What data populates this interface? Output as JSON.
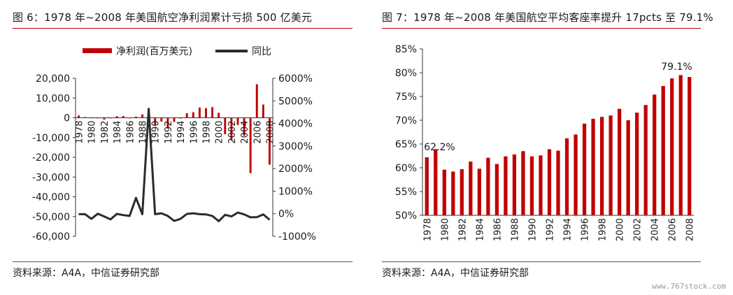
{
  "left": {
    "title": "图 6：1978 年~2008 年美国航空净利润累计亏损 500 亿美元",
    "source": "资料来源：A4A，中信证券研究部"
  },
  "right": {
    "title": "图 7：1978 年~2008 年美国航空平均客座率提升 17pcts 至 79.1%",
    "source": "资料来源：A4A，中信证券研究部"
  },
  "watermark": "www.767stock.com",
  "chart_data": [
    {
      "type": "bar+line",
      "title": "",
      "legend_placement": "top",
      "grid": false,
      "colors": {
        "bar": "#c00000",
        "line": "#2b2b2b"
      },
      "categories": [
        "1978",
        "1979",
        "1980",
        "1981",
        "1982",
        "1983",
        "1984",
        "1985",
        "1986",
        "1987",
        "1988",
        "1989",
        "1990",
        "1991",
        "1992",
        "1993",
        "1994",
        "1995",
        "1996",
        "1997",
        "1998",
        "1999",
        "2000",
        "2001",
        "2002",
        "2003",
        "2004",
        "2005",
        "2006",
        "2007",
        "2008"
      ],
      "x_tick_labels": [
        "1978",
        "1980",
        "1982",
        "1984",
        "1986",
        "1988",
        "1990",
        "1992",
        "1994",
        "1996",
        "1998",
        "2000",
        "2002",
        "2004",
        "2006",
        "2008"
      ],
      "series": [
        {
          "name": "净利润(百万美元)",
          "axis": "left",
          "kind": "bar",
          "values": [
            1200,
            350,
            -200,
            -300,
            -900,
            -200,
            800,
            900,
            -200,
            600,
            1700,
            100,
            -3900,
            -1900,
            -4800,
            -2100,
            -350,
            2300,
            2800,
            5200,
            4900,
            5400,
            2500,
            -8300,
            -11300,
            -3600,
            -9100,
            -28000,
            17000,
            6700,
            -23700
          ]
        },
        {
          "name": "同比",
          "axis": "right",
          "kind": "line",
          "values": [
            -20,
            -20,
            -230,
            0,
            -120,
            -250,
            -10,
            -60,
            -100,
            700,
            -20,
            4650,
            -20,
            20,
            -100,
            -320,
            -230,
            -10,
            20,
            -20,
            -30,
            -100,
            -330,
            -50,
            -120,
            50,
            -30,
            -160,
            -150,
            -30,
            -270
          ]
        }
      ],
      "yleft": {
        "lim": [
          -60000,
          20000
        ],
        "ticks": [
          "20,000",
          "10,000",
          "0",
          "-10,000",
          "-20,000",
          "-30,000",
          "-40,000",
          "-50,000",
          "-60,000"
        ]
      },
      "yright": {
        "lim": [
          -1000,
          6000
        ],
        "ticks": [
          "6000%",
          "5000%",
          "4000%",
          "3000%",
          "2000%",
          "1000%",
          "0%",
          "-1000%"
        ]
      }
    },
    {
      "type": "bar",
      "title": "",
      "grid": false,
      "colors": {
        "bar": "#c00000"
      },
      "categories": [
        "1978",
        "1979",
        "1980",
        "1981",
        "1982",
        "1983",
        "1984",
        "1985",
        "1986",
        "1987",
        "1988",
        "1989",
        "1990",
        "1991",
        "1992",
        "1993",
        "1994",
        "1995",
        "1996",
        "1997",
        "1998",
        "1999",
        "2000",
        "2001",
        "2002",
        "2003",
        "2004",
        "2005",
        "2006",
        "2007",
        "2008"
      ],
      "x_tick_labels": [
        "1978",
        "1980",
        "1982",
        "1984",
        "1986",
        "1988",
        "1990",
        "1992",
        "1994",
        "1996",
        "1998",
        "2000",
        "2002",
        "2004",
        "2006",
        "2008"
      ],
      "values": [
        62.2,
        63.9,
        59.6,
        59.2,
        59.7,
        61.3,
        59.8,
        62.1,
        60.8,
        62.4,
        62.8,
        63.5,
        62.4,
        62.6,
        63.9,
        63.6,
        66.2,
        67.0,
        69.3,
        70.3,
        70.7,
        71.0,
        72.4,
        70.0,
        71.6,
        73.2,
        75.4,
        77.2,
        78.8,
        79.5,
        79.1
      ],
      "ylim": [
        50,
        85
      ],
      "y_ticks": [
        "85%",
        "80%",
        "75%",
        "70%",
        "65%",
        "60%",
        "55%",
        "50%"
      ],
      "annotations": [
        {
          "category": "1978",
          "label": "62.2%"
        },
        {
          "category": "2008",
          "label": "79.1%"
        }
      ]
    }
  ]
}
